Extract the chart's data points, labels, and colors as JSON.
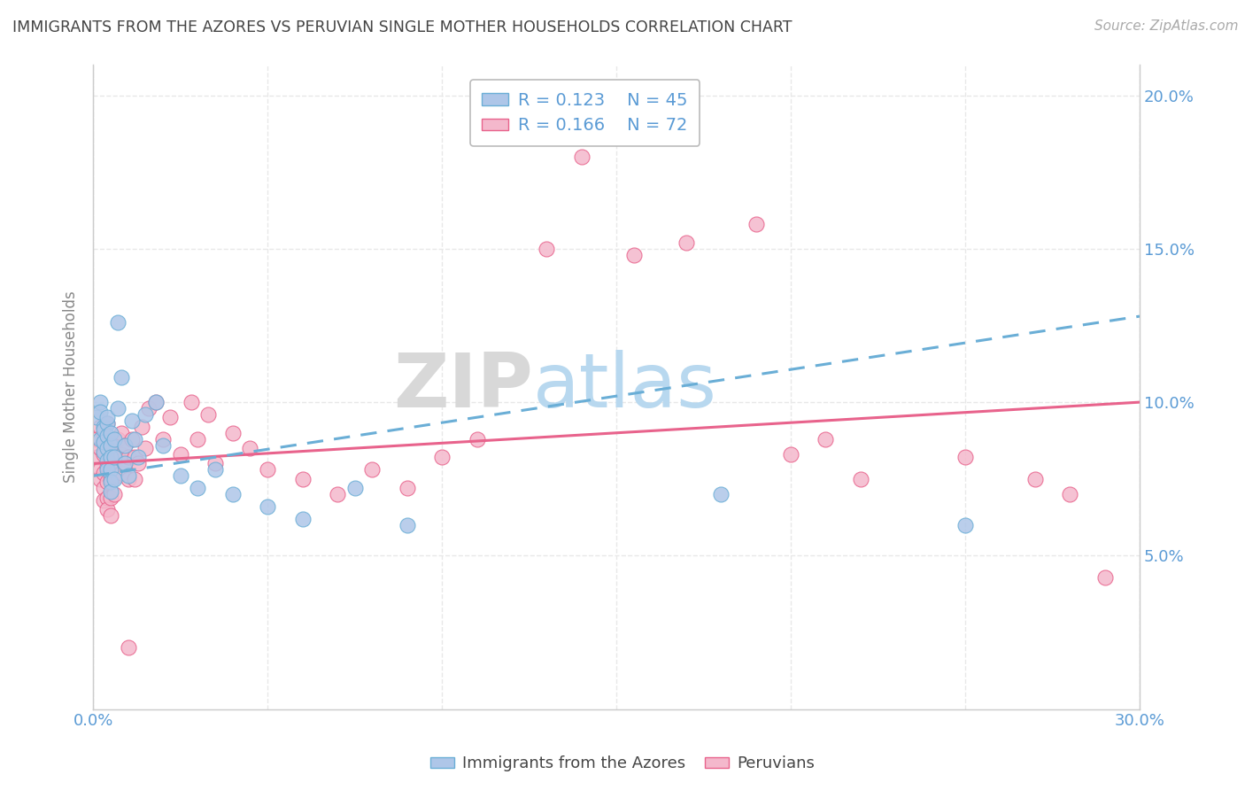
{
  "title": "IMMIGRANTS FROM THE AZORES VS PERUVIAN SINGLE MOTHER HOUSEHOLDS CORRELATION CHART",
  "source": "Source: ZipAtlas.com",
  "ylabel": "Single Mother Households",
  "xlim": [
    0.0,
    0.3
  ],
  "ylim": [
    0.0,
    0.21
  ],
  "series1_name": "Immigrants from the Azores",
  "series1_R": "0.123",
  "series1_N": "45",
  "series1_color": "#aec6e8",
  "series1_edge_color": "#6aaed6",
  "series1_line_color": "#6aaed6",
  "series2_name": "Peruvians",
  "series2_R": "0.166",
  "series2_N": "72",
  "series2_color": "#f4b8cc",
  "series2_edge_color": "#e8638c",
  "series2_line_color": "#e8638c",
  "watermark_zip": "ZIP",
  "watermark_atlas": "atlas",
  "background_color": "#ffffff",
  "grid_color": "#e8e8e8",
  "axis_color": "#cccccc",
  "title_color": "#444444",
  "tick_label_color": "#5b9bd5",
  "right_tick_color": "#5b9bd5",
  "legend_text_color": "#5b9bd5",
  "series1_x": [
    0.001,
    0.002,
    0.002,
    0.002,
    0.003,
    0.003,
    0.003,
    0.003,
    0.004,
    0.004,
    0.004,
    0.004,
    0.004,
    0.004,
    0.005,
    0.005,
    0.005,
    0.005,
    0.005,
    0.005,
    0.006,
    0.006,
    0.006,
    0.007,
    0.007,
    0.008,
    0.009,
    0.009,
    0.01,
    0.011,
    0.012,
    0.013,
    0.015,
    0.018,
    0.02,
    0.025,
    0.03,
    0.035,
    0.04,
    0.05,
    0.06,
    0.075,
    0.09,
    0.18,
    0.25
  ],
  "series1_y": [
    0.095,
    0.1,
    0.097,
    0.088,
    0.092,
    0.084,
    0.091,
    0.087,
    0.093,
    0.089,
    0.085,
    0.095,
    0.081,
    0.078,
    0.086,
    0.082,
    0.09,
    0.078,
    0.074,
    0.071,
    0.088,
    0.082,
    0.075,
    0.126,
    0.098,
    0.108,
    0.086,
    0.08,
    0.076,
    0.094,
    0.088,
    0.082,
    0.096,
    0.1,
    0.086,
    0.076,
    0.072,
    0.078,
    0.07,
    0.066,
    0.062,
    0.072,
    0.06,
    0.07,
    0.06
  ],
  "series2_x": [
    0.001,
    0.001,
    0.002,
    0.002,
    0.002,
    0.002,
    0.003,
    0.003,
    0.003,
    0.003,
    0.003,
    0.004,
    0.004,
    0.004,
    0.004,
    0.004,
    0.004,
    0.005,
    0.005,
    0.005,
    0.005,
    0.005,
    0.006,
    0.006,
    0.006,
    0.007,
    0.007,
    0.007,
    0.008,
    0.008,
    0.008,
    0.009,
    0.009,
    0.01,
    0.01,
    0.011,
    0.012,
    0.012,
    0.013,
    0.014,
    0.015,
    0.016,
    0.018,
    0.02,
    0.022,
    0.025,
    0.028,
    0.03,
    0.033,
    0.035,
    0.04,
    0.045,
    0.05,
    0.06,
    0.07,
    0.08,
    0.09,
    0.1,
    0.11,
    0.13,
    0.14,
    0.155,
    0.17,
    0.19,
    0.2,
    0.21,
    0.22,
    0.25,
    0.27,
    0.28,
    0.29,
    0.01
  ],
  "series2_y": [
    0.088,
    0.082,
    0.092,
    0.085,
    0.078,
    0.075,
    0.09,
    0.083,
    0.077,
    0.072,
    0.068,
    0.093,
    0.086,
    0.079,
    0.074,
    0.069,
    0.065,
    0.086,
    0.08,
    0.075,
    0.069,
    0.063,
    0.083,
    0.076,
    0.07,
    0.088,
    0.082,
    0.076,
    0.09,
    0.083,
    0.077,
    0.086,
    0.08,
    0.082,
    0.075,
    0.088,
    0.082,
    0.075,
    0.08,
    0.092,
    0.085,
    0.098,
    0.1,
    0.088,
    0.095,
    0.083,
    0.1,
    0.088,
    0.096,
    0.08,
    0.09,
    0.085,
    0.078,
    0.075,
    0.07,
    0.078,
    0.072,
    0.082,
    0.088,
    0.15,
    0.18,
    0.148,
    0.152,
    0.158,
    0.083,
    0.088,
    0.075,
    0.082,
    0.075,
    0.07,
    0.043,
    0.02
  ],
  "trendline1_x0": 0.0,
  "trendline1_y0": 0.076,
  "trendline1_x1": 0.3,
  "trendline1_y1": 0.128,
  "trendline2_x0": 0.0,
  "trendline2_y0": 0.08,
  "trendline2_x1": 0.3,
  "trendline2_y1": 0.1
}
